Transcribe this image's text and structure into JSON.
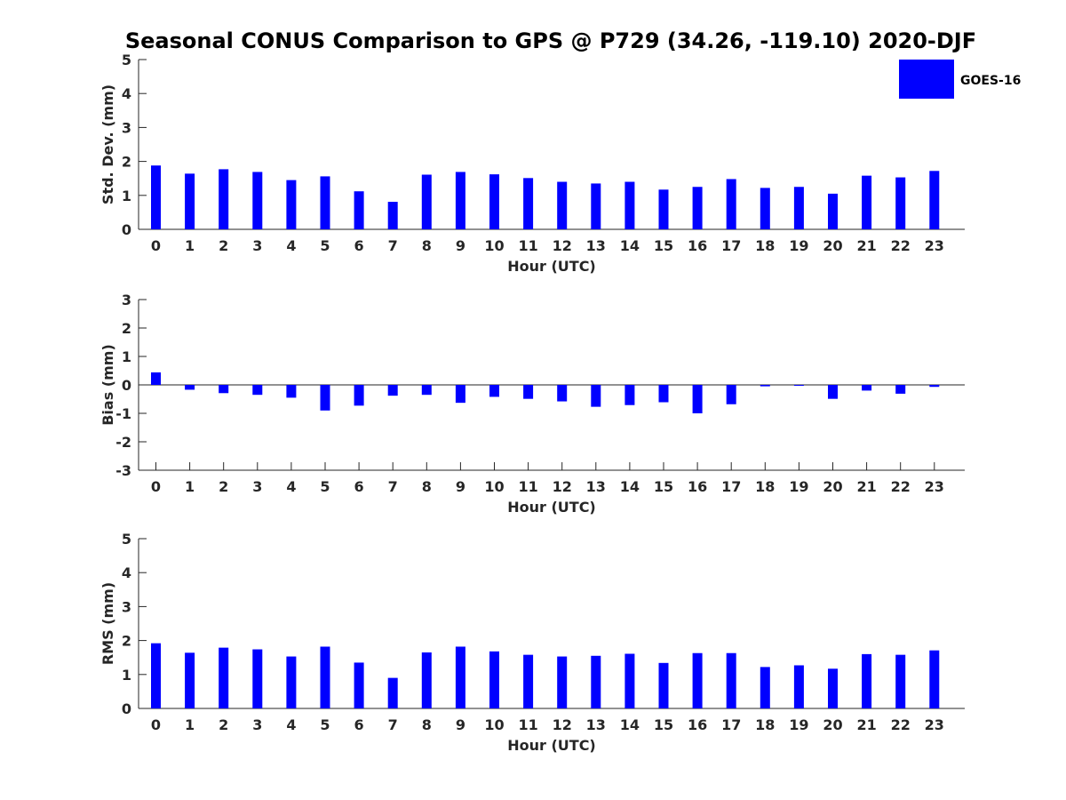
{
  "figure": {
    "title": "Seasonal CONUS Comparison to GPS @ P729 (34.26, -119.10) 2020-DJF"
  },
  "legend": {
    "label": "GOES-16",
    "color": "#0000ff",
    "placement": "top-right"
  },
  "chart_data": [
    {
      "type": "bar",
      "xlabel": "Hour (UTC)",
      "ylabel": "Std. Dev. (mm)",
      "ylim": [
        0,
        5
      ],
      "yticks": [
        "0",
        "1",
        "2",
        "3",
        "4",
        "5"
      ],
      "categories": [
        "0",
        "1",
        "2",
        "3",
        "4",
        "5",
        "6",
        "7",
        "8",
        "9",
        "10",
        "11",
        "12",
        "13",
        "14",
        "15",
        "16",
        "17",
        "18",
        "19",
        "20",
        "21",
        "22",
        "23"
      ],
      "series": [
        {
          "name": "GOES-16",
          "color": "#0000ff",
          "values": [
            1.88,
            1.64,
            1.77,
            1.69,
            1.45,
            1.56,
            1.12,
            0.81,
            1.61,
            1.69,
            1.62,
            1.51,
            1.4,
            1.35,
            1.4,
            1.17,
            1.25,
            1.48,
            1.22,
            1.25,
            1.05,
            1.58,
            1.53,
            1.72
          ]
        }
      ]
    },
    {
      "type": "bar",
      "xlabel": "Hour (UTC)",
      "ylabel": "Bias (mm)",
      "ylim": [
        -3,
        3
      ],
      "yticks": [
        "-3",
        "-2",
        "-1",
        "0",
        "1",
        "2",
        "3"
      ],
      "categories": [
        "0",
        "1",
        "2",
        "3",
        "4",
        "5",
        "6",
        "7",
        "8",
        "9",
        "10",
        "11",
        "12",
        "13",
        "14",
        "15",
        "16",
        "17",
        "18",
        "19",
        "20",
        "21",
        "22",
        "23"
      ],
      "series": [
        {
          "name": "GOES-16",
          "color": "#0000ff",
          "values": [
            0.44,
            -0.17,
            -0.29,
            -0.35,
            -0.45,
            -0.9,
            -0.73,
            -0.38,
            -0.35,
            -0.63,
            -0.42,
            -0.49,
            -0.58,
            -0.77,
            -0.71,
            -0.61,
            -1.0,
            -0.68,
            -0.05,
            -0.02,
            -0.49,
            -0.2,
            -0.31,
            -0.07
          ]
        }
      ]
    },
    {
      "type": "bar",
      "xlabel": "Hour (UTC)",
      "ylabel": "RMS (mm)",
      "ylim": [
        0,
        5
      ],
      "yticks": [
        "0",
        "1",
        "2",
        "3",
        "4",
        "5"
      ],
      "categories": [
        "0",
        "1",
        "2",
        "3",
        "4",
        "5",
        "6",
        "7",
        "8",
        "9",
        "10",
        "11",
        "12",
        "13",
        "14",
        "15",
        "16",
        "17",
        "18",
        "19",
        "20",
        "21",
        "22",
        "23"
      ],
      "series": [
        {
          "name": "GOES-16",
          "color": "#0000ff",
          "values": [
            1.92,
            1.64,
            1.79,
            1.74,
            1.53,
            1.82,
            1.35,
            0.9,
            1.65,
            1.82,
            1.68,
            1.58,
            1.53,
            1.55,
            1.61,
            1.34,
            1.63,
            1.63,
            1.22,
            1.27,
            1.17,
            1.6,
            1.58,
            1.71
          ]
        }
      ]
    }
  ]
}
